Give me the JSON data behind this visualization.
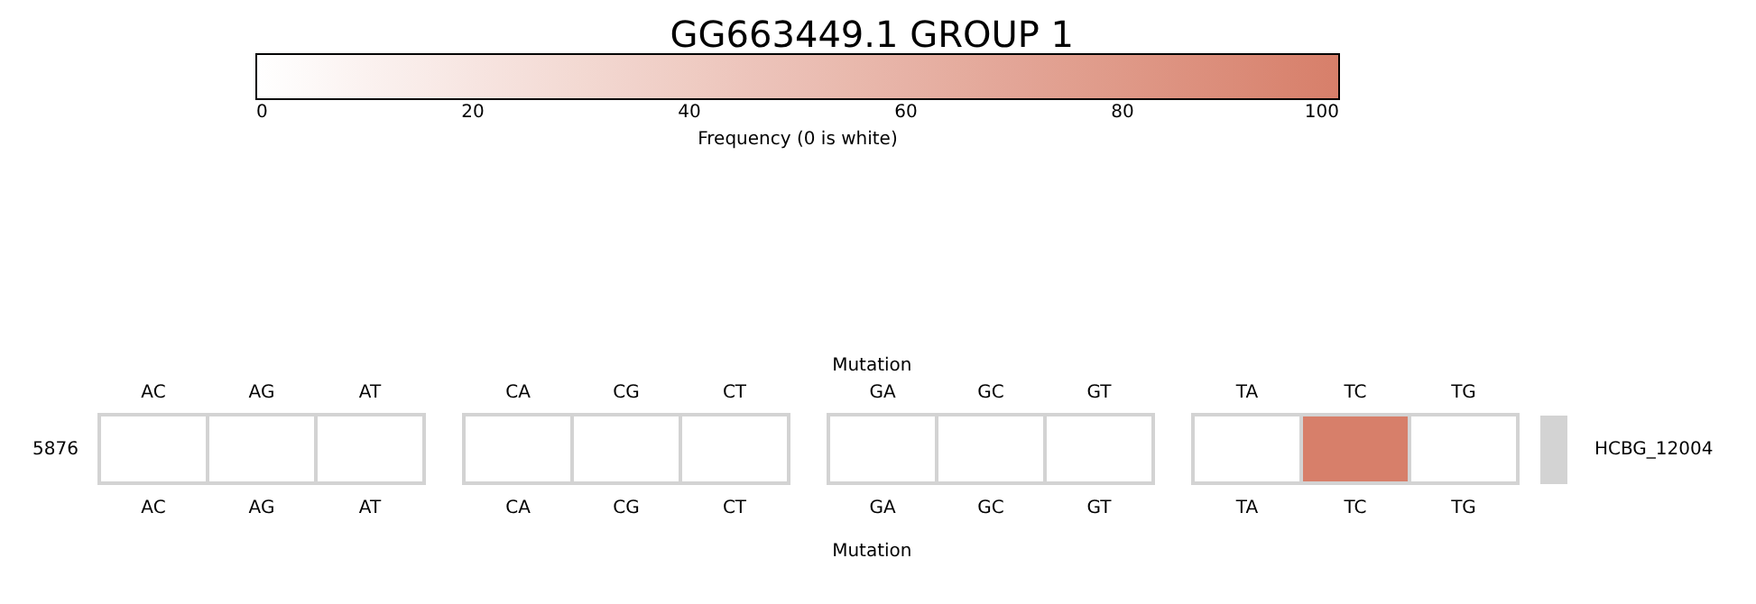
{
  "chart_data": {
    "type": "heatmap",
    "title": "GG663449.1 GROUP 1",
    "clabel": "Frequency (0 is white)",
    "clim": [
      0,
      100
    ],
    "cticks": [
      0,
      20,
      40,
      60,
      80,
      100
    ],
    "xlabel": "Mutation",
    "x2label": "Mutation",
    "categories": [
      "AC",
      "AG",
      "AT",
      "CA",
      "CG",
      "CT",
      "GA",
      "GC",
      "GT",
      "TA",
      "TC",
      "TG"
    ],
    "y_categories": [
      "5876"
    ],
    "y2_categories": [
      "HCBG_12004"
    ],
    "cells": [
      [
        0,
        0,
        0,
        0,
        0,
        0,
        0,
        0,
        0,
        0,
        100,
        0
      ]
    ]
  }
}
